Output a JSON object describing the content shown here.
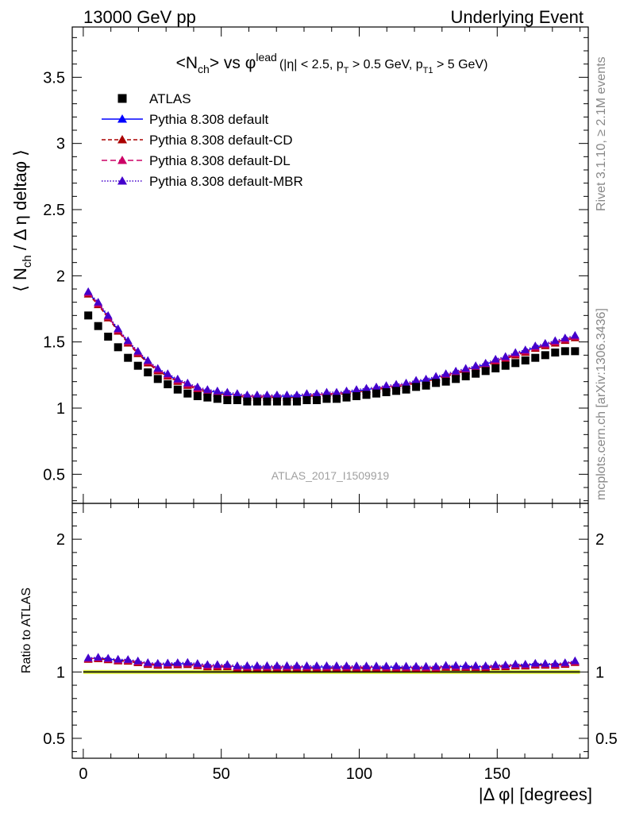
{
  "header": {
    "left": "13000 GeV pp",
    "right": "Underlying Event"
  },
  "side": {
    "rivet": "Rivet 3.1.10, ≥ 2.1M events",
    "mcplots": "mcplots.cern.ch [arXiv:1306.3436]"
  },
  "watermark": "ATLAS_2017_I1509919",
  "chart_data": {
    "type": "scatter",
    "title": {
      "main_a": "<N",
      "main_sub": "ch",
      "main_b": "> vs φ",
      "main_sup": "lead",
      "cut_1": "(|η| < 2.5, p",
      "cut_1_sub": "T",
      "cut_2": " > 0.5 GeV, p",
      "cut_2_sub": "T1",
      "cut_3": " > 5 GeV)"
    },
    "ylabel": {
      "a": "⟨ N",
      "sub": "ch",
      "b": " / Δ η deltaφ ⟩"
    },
    "xlabel": "|Δ φ| [degrees]",
    "ratio_ylabel": "Ratio to ATLAS",
    "xlim": [
      -4,
      183
    ],
    "ylim": [
      0.28,
      3.88
    ],
    "ratio_ylim": [
      0.35,
      2.27
    ],
    "x_ticks": [
      0,
      50,
      100,
      150
    ],
    "y_ticks": [
      0.5,
      1,
      1.5,
      2,
      2.5,
      3,
      3.5
    ],
    "ratio_ticks": [
      0.5,
      1,
      2
    ],
    "legend": [
      {
        "label": "ATLAS",
        "color": "#000000",
        "marker": "square",
        "dash": ""
      },
      {
        "label": "Pythia 8.308 default",
        "color": "#0000ff",
        "marker": "triangle",
        "dash": ""
      },
      {
        "label": "Pythia 8.308 default-CD",
        "color": "#aa0000",
        "marker": "triangle",
        "dash": "5,3"
      },
      {
        "label": "Pythia 8.308 default-DL",
        "color": "#cc0066",
        "marker": "triangle",
        "dash": "7,4"
      },
      {
        "label": "Pythia 8.308 default-MBR",
        "color": "#4400cc",
        "marker": "triangle",
        "dash": "1.5,2"
      }
    ],
    "x": [
      1.8,
      5.4,
      9,
      12.6,
      16.2,
      19.8,
      23.4,
      27,
      30.6,
      34.2,
      37.8,
      41.4,
      45,
      48.6,
      52.2,
      55.8,
      59.4,
      63,
      66.6,
      70.2,
      73.8,
      77.4,
      81,
      84.6,
      88.2,
      91.8,
      95.4,
      99,
      102.6,
      106.2,
      109.8,
      113.4,
      117,
      120.6,
      124.2,
      127.8,
      131.4,
      135,
      138.6,
      142.2,
      145.8,
      149.4,
      153,
      156.6,
      160.2,
      163.8,
      167.4,
      171,
      174.6,
      178.2
    ],
    "series": [
      {
        "name": "ATLAS",
        "color": "#000000",
        "marker": "square",
        "values": [
          1.7,
          1.62,
          1.54,
          1.46,
          1.38,
          1.32,
          1.27,
          1.22,
          1.18,
          1.14,
          1.11,
          1.09,
          1.08,
          1.07,
          1.06,
          1.06,
          1.05,
          1.05,
          1.05,
          1.05,
          1.05,
          1.05,
          1.06,
          1.06,
          1.07,
          1.07,
          1.08,
          1.09,
          1.1,
          1.11,
          1.12,
          1.13,
          1.14,
          1.16,
          1.17,
          1.19,
          1.2,
          1.22,
          1.24,
          1.26,
          1.28,
          1.3,
          1.32,
          1.34,
          1.36,
          1.38,
          1.4,
          1.42,
          1.43,
          1.43
        ]
      },
      {
        "name": "Pythia 8.308 default",
        "color": "#0000ff",
        "marker": "triangle",
        "dash": "",
        "values": [
          1.87,
          1.79,
          1.69,
          1.59,
          1.5,
          1.42,
          1.35,
          1.29,
          1.25,
          1.21,
          1.18,
          1.15,
          1.13,
          1.12,
          1.11,
          1.1,
          1.09,
          1.09,
          1.09,
          1.09,
          1.09,
          1.09,
          1.1,
          1.1,
          1.11,
          1.11,
          1.12,
          1.13,
          1.14,
          1.15,
          1.16,
          1.17,
          1.18,
          1.2,
          1.21,
          1.23,
          1.25,
          1.27,
          1.29,
          1.31,
          1.33,
          1.36,
          1.38,
          1.41,
          1.43,
          1.46,
          1.48,
          1.5,
          1.52,
          1.54
        ]
      },
      {
        "name": "Pythia 8.308 default-CD",
        "color": "#aa0000",
        "marker": "triangle",
        "dash": "5,3",
        "values": [
          1.86,
          1.78,
          1.68,
          1.58,
          1.49,
          1.41,
          1.34,
          1.28,
          1.24,
          1.2,
          1.17,
          1.14,
          1.12,
          1.11,
          1.1,
          1.09,
          1.08,
          1.08,
          1.08,
          1.08,
          1.08,
          1.08,
          1.09,
          1.09,
          1.1,
          1.1,
          1.11,
          1.12,
          1.13,
          1.14,
          1.15,
          1.16,
          1.17,
          1.19,
          1.2,
          1.22,
          1.24,
          1.26,
          1.28,
          1.3,
          1.32,
          1.35,
          1.37,
          1.4,
          1.42,
          1.45,
          1.47,
          1.49,
          1.51,
          1.53
        ]
      },
      {
        "name": "Pythia 8.308 default-DL",
        "color": "#cc0066",
        "marker": "triangle",
        "dash": "7,4",
        "values": [
          1.87,
          1.79,
          1.69,
          1.59,
          1.5,
          1.42,
          1.35,
          1.29,
          1.25,
          1.21,
          1.18,
          1.15,
          1.13,
          1.12,
          1.11,
          1.1,
          1.09,
          1.09,
          1.09,
          1.09,
          1.09,
          1.09,
          1.1,
          1.1,
          1.11,
          1.11,
          1.12,
          1.13,
          1.14,
          1.15,
          1.16,
          1.17,
          1.18,
          1.2,
          1.21,
          1.23,
          1.25,
          1.27,
          1.29,
          1.31,
          1.33,
          1.36,
          1.38,
          1.41,
          1.43,
          1.46,
          1.48,
          1.5,
          1.52,
          1.54
        ]
      },
      {
        "name": "Pythia 8.308 default-MBR",
        "color": "#4400cc",
        "marker": "triangle",
        "dash": "1.5,2",
        "values": [
          1.88,
          1.8,
          1.7,
          1.6,
          1.51,
          1.43,
          1.36,
          1.3,
          1.26,
          1.22,
          1.19,
          1.16,
          1.14,
          1.13,
          1.12,
          1.11,
          1.1,
          1.1,
          1.1,
          1.1,
          1.1,
          1.1,
          1.11,
          1.11,
          1.12,
          1.12,
          1.13,
          1.14,
          1.15,
          1.16,
          1.17,
          1.18,
          1.19,
          1.21,
          1.22,
          1.24,
          1.26,
          1.28,
          1.3,
          1.32,
          1.34,
          1.37,
          1.39,
          1.42,
          1.44,
          1.47,
          1.49,
          1.51,
          1.53,
          1.55
        ]
      }
    ],
    "ratio_band": {
      "low": 0.985,
      "high": 1.015,
      "color": "#ddee44"
    },
    "grid": false,
    "legend_position": "top-left"
  }
}
